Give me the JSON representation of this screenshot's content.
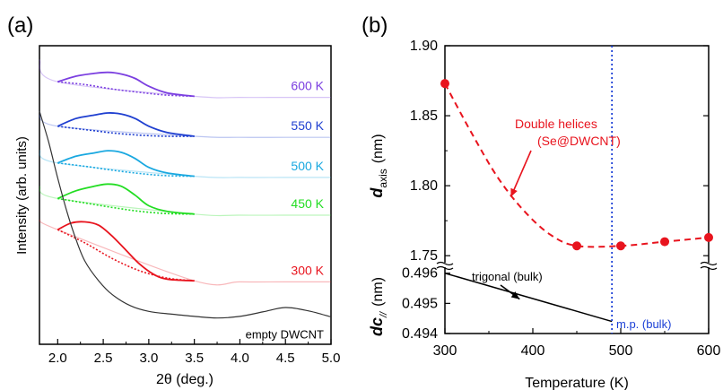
{
  "chart_data": [
    {
      "panel_label": "(a)",
      "type": "line",
      "xlabel": "2θ (deg.)",
      "ylabel": "Intensity (arb. units)",
      "xlim": [
        1.8,
        5.0
      ],
      "xticks": [
        "2.0",
        "2.5",
        "3.0",
        "3.5",
        "4.0",
        "4.5",
        "5.0"
      ],
      "y_ticks_shown": false,
      "grid": false,
      "series": [
        {
          "name": "600 K",
          "color": "#7b3fe0",
          "points": [
            [
              2.0,
              0.52
            ],
            [
              2.2,
              0.42
            ],
            [
              2.4,
              0.37
            ],
            [
              2.55,
              0.35
            ],
            [
              2.7,
              0.38
            ],
            [
              2.85,
              0.46
            ],
            [
              3.0,
              0.6
            ],
            [
              3.2,
              0.72
            ],
            [
              3.5,
              0.78
            ]
          ],
          "fit": [
            [
              2.0,
              0.52
            ],
            [
              2.3,
              0.57
            ],
            [
              2.6,
              0.65
            ],
            [
              2.9,
              0.71
            ],
            [
              3.2,
              0.76
            ],
            [
              3.5,
              0.78
            ]
          ],
          "tail": [
            [
              1.8,
              0.12
            ],
            [
              2.0,
              0.52
            ],
            [
              3.5,
              0.78
            ],
            [
              4.0,
              0.8
            ],
            [
              4.5,
              0.8
            ],
            [
              5.0,
              0.8
            ]
          ]
        },
        {
          "name": "550 K",
          "color": "#1f3fd0",
          "points": [
            [
              2.0,
              1.32
            ],
            [
              2.2,
              1.18
            ],
            [
              2.4,
              1.12
            ],
            [
              2.55,
              1.08
            ],
            [
              2.7,
              1.1
            ],
            [
              2.85,
              1.18
            ],
            [
              3.0,
              1.32
            ],
            [
              3.2,
              1.43
            ],
            [
              3.5,
              1.5
            ]
          ],
          "fit": [
            [
              2.0,
              1.32
            ],
            [
              2.3,
              1.38
            ],
            [
              2.6,
              1.44
            ],
            [
              2.9,
              1.48
            ],
            [
              3.2,
              1.5
            ],
            [
              3.5,
              1.5
            ]
          ],
          "tail": [
            [
              1.8,
              1.05
            ],
            [
              2.0,
              1.32
            ],
            [
              3.5,
              1.5
            ],
            [
              4.0,
              1.52
            ],
            [
              4.5,
              1.52
            ],
            [
              5.0,
              1.52
            ]
          ]
        },
        {
          "name": "500 K",
          "color": "#19a8e0",
          "points": [
            [
              2.0,
              1.98
            ],
            [
              2.2,
              1.86
            ],
            [
              2.4,
              1.8
            ],
            [
              2.55,
              1.76
            ],
            [
              2.7,
              1.79
            ],
            [
              2.85,
              1.9
            ],
            [
              3.0,
              2.06
            ],
            [
              3.2,
              2.16
            ],
            [
              3.5,
              2.22
            ]
          ],
          "fit": [
            [
              2.0,
              1.98
            ],
            [
              2.3,
              2.04
            ],
            [
              2.6,
              2.11
            ],
            [
              2.9,
              2.17
            ],
            [
              3.2,
              2.21
            ],
            [
              3.5,
              2.22
            ]
          ],
          "tail": [
            [
              1.8,
              1.75
            ],
            [
              2.0,
              1.98
            ],
            [
              3.5,
              2.22
            ],
            [
              4.0,
              2.24
            ],
            [
              4.5,
              2.24
            ],
            [
              5.0,
              2.24
            ]
          ]
        },
        {
          "name": "450 K",
          "color": "#22dd22",
          "points": [
            [
              2.0,
              2.62
            ],
            [
              2.2,
              2.48
            ],
            [
              2.4,
              2.4
            ],
            [
              2.55,
              2.36
            ],
            [
              2.7,
              2.4
            ],
            [
              2.85,
              2.56
            ],
            [
              3.0,
              2.75
            ],
            [
              3.2,
              2.85
            ],
            [
              3.5,
              2.9
            ]
          ],
          "fit": [
            [
              2.0,
              2.62
            ],
            [
              2.3,
              2.7
            ],
            [
              2.6,
              2.78
            ],
            [
              2.9,
              2.85
            ],
            [
              3.2,
              2.89
            ],
            [
              3.5,
              2.9
            ]
          ],
          "tail": [
            [
              1.8,
              2.4
            ],
            [
              2.0,
              2.62
            ],
            [
              3.5,
              2.9
            ],
            [
              4.0,
              2.92
            ],
            [
              4.5,
              2.92
            ],
            [
              5.0,
              2.92
            ]
          ]
        },
        {
          "name": "300 K",
          "color": "#e8141e",
          "points": [
            [
              2.0,
              3.18
            ],
            [
              2.15,
              3.06
            ],
            [
              2.3,
              3.04
            ],
            [
              2.45,
              3.1
            ],
            [
              2.6,
              3.3
            ],
            [
              2.75,
              3.55
            ],
            [
              2.9,
              3.8
            ],
            [
              3.05,
              3.98
            ],
            [
              3.2,
              4.07
            ],
            [
              3.5,
              4.1
            ]
          ],
          "fit": [
            [
              2.0,
              3.18
            ],
            [
              2.3,
              3.42
            ],
            [
              2.6,
              3.7
            ],
            [
              2.9,
              3.92
            ],
            [
              3.2,
              4.05
            ],
            [
              3.5,
              4.1
            ]
          ],
          "tail": [
            [
              1.8,
              3.0
            ],
            [
              2.0,
              3.18
            ],
            [
              3.5,
              4.1
            ],
            [
              4.0,
              4.12
            ],
            [
              4.5,
              4.12
            ],
            [
              5.0,
              4.12
            ]
          ]
        },
        {
          "name": "empty DWCNT",
          "color": "#333333",
          "points": [
            [
              1.8,
              1.05
            ],
            [
              1.9,
              1.6
            ],
            [
              2.0,
              2.25
            ],
            [
              2.1,
              2.85
            ],
            [
              2.2,
              3.35
            ],
            [
              2.3,
              3.75
            ],
            [
              2.45,
              4.1
            ],
            [
              2.6,
              4.35
            ],
            [
              2.8,
              4.55
            ],
            [
              3.0,
              4.65
            ],
            [
              3.25,
              4.7
            ],
            [
              3.5,
              4.74
            ],
            [
              3.75,
              4.77
            ],
            [
              4.0,
              4.74
            ],
            [
              4.25,
              4.66
            ],
            [
              4.5,
              4.58
            ],
            [
              4.75,
              4.64
            ],
            [
              5.0,
              4.75
            ]
          ]
        }
      ]
    },
    {
      "panel_label": "(b)",
      "type": "line",
      "xlabel": "Temperature (K)",
      "xlim": [
        300,
        600
      ],
      "xticks": [
        "300",
        "400",
        "500",
        "600"
      ],
      "grid": false,
      "vline": {
        "x": 490,
        "color": "#1a3fd6",
        "style": "dotted",
        "label": "m.p. (bulk)"
      },
      "upper": {
        "ylabel_main": "d",
        "ylabel_sub": "axis",
        "ylabel_unit": "(nm)",
        "ylim": [
          1.745,
          1.9
        ],
        "yticks": [
          "1.75",
          "1.80",
          "1.85",
          "1.90"
        ],
        "series": [
          {
            "name": "Double helices",
            "subname": "(Se@DWCNT)",
            "color": "#e8141e",
            "style": "dashed-with-markers",
            "points": [
              [
                300,
                1.873
              ],
              [
                450,
                1.757
              ],
              [
                500,
                1.757
              ],
              [
                550,
                1.76
              ],
              [
                600,
                1.763
              ]
            ],
            "curve": [
              [
                300,
                1.873
              ],
              [
                330,
                1.838
              ],
              [
                360,
                1.806
              ],
              [
                390,
                1.782
              ],
              [
                420,
                1.765
              ],
              [
                450,
                1.757
              ],
              [
                500,
                1.757
              ],
              [
                550,
                1.76
              ],
              [
                600,
                1.763
              ]
            ]
          }
        ],
        "annotation_anchor": [
          375,
          1.792
        ]
      },
      "lower": {
        "ylabel_main": "dc",
        "ylabel_sub": "//",
        "ylabel_unit": "(nm)",
        "ylim": [
          0.494,
          0.4962
        ],
        "yticks": [
          "0.494",
          "0.495",
          "0.496"
        ],
        "series": [
          {
            "name": "trigonal (bulk)",
            "color": "#000000",
            "style": "solid",
            "points": [
              [
                300,
                0.496
              ],
              [
                490,
                0.4944
              ]
            ]
          }
        ],
        "annotation_anchor": [
          385,
          0.49514
        ]
      }
    }
  ]
}
